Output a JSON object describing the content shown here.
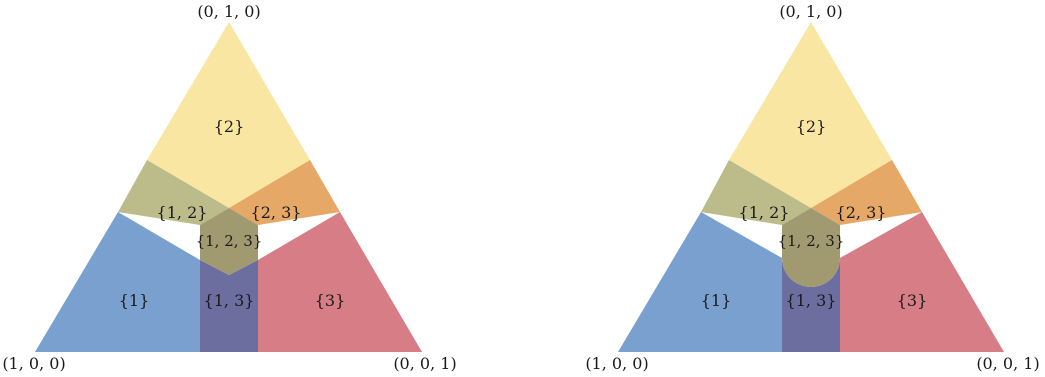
{
  "panels": [
    {
      "vertices": {
        "top": "(0, 1, 0)",
        "left": "(1, 0, 0)",
        "right": "(0, 0, 1)"
      },
      "regions": {
        "r1": "{1}",
        "r2": "{2}",
        "r3": "{3}",
        "r12": "{1, 2}",
        "r23": "{2, 3}",
        "r13": "{1, 3}",
        "r123": "{1, 2, 3}"
      }
    },
    {
      "vertices": {
        "top": "(0, 1, 0)",
        "left": "(1, 0, 0)",
        "right": "(0, 0, 1)"
      },
      "regions": {
        "r1": "{1}",
        "r2": "{2}",
        "r3": "{3}",
        "r12": "{1, 2}",
        "r23": "{2, 3}",
        "r13": "{1, 3}",
        "r123": "{1, 2, 3}"
      }
    }
  ],
  "colors": {
    "set1": "#7aa0cf",
    "set2": "#f9e6a2",
    "set3": "#d67d85",
    "set12": "#bcbb8a",
    "set23": "#e6a867",
    "set13": "#6b6e9f",
    "set123": "#a19a71"
  }
}
